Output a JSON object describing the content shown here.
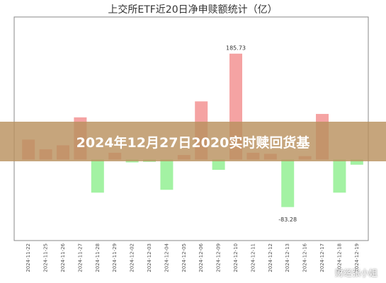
{
  "chart_data": {
    "type": "bar",
    "title": "上交所ETF近20日净申赎额统计（亿）",
    "categories": [
      "2024-11-22",
      "2024-11-25",
      "2024-11-26",
      "2024-11-27",
      "2024-11-28",
      "2024-11-29",
      "2024-12-02",
      "2024-12-03",
      "2024-12-04",
      "2024-12-05",
      "2024-12-06",
      "2024-12-09",
      "2024-12-10",
      "2024-12-11",
      "2024-12-12",
      "2024-12-13",
      "2024-12-16",
      "2024-12-17",
      "2024-12-18",
      "2024-12-19"
    ],
    "values": [
      35,
      18,
      25,
      74,
      -58,
      12,
      -5,
      -4,
      -53,
      8,
      102,
      -18,
      185.73,
      12,
      10,
      -83.28,
      6,
      80,
      -58,
      -9
    ],
    "value_labels": [
      null,
      null,
      null,
      null,
      null,
      null,
      null,
      null,
      null,
      null,
      null,
      null,
      "185.73",
      null,
      null,
      "-83.28",
      null,
      null,
      null,
      null
    ],
    "positive_color": "#f5a3a3",
    "negative_color": "#a3f2a3",
    "ylim": [
      -142,
      250
    ]
  },
  "banner": "2024年12月27日2020实时赎回货基",
  "watermark": "财经张小姐"
}
